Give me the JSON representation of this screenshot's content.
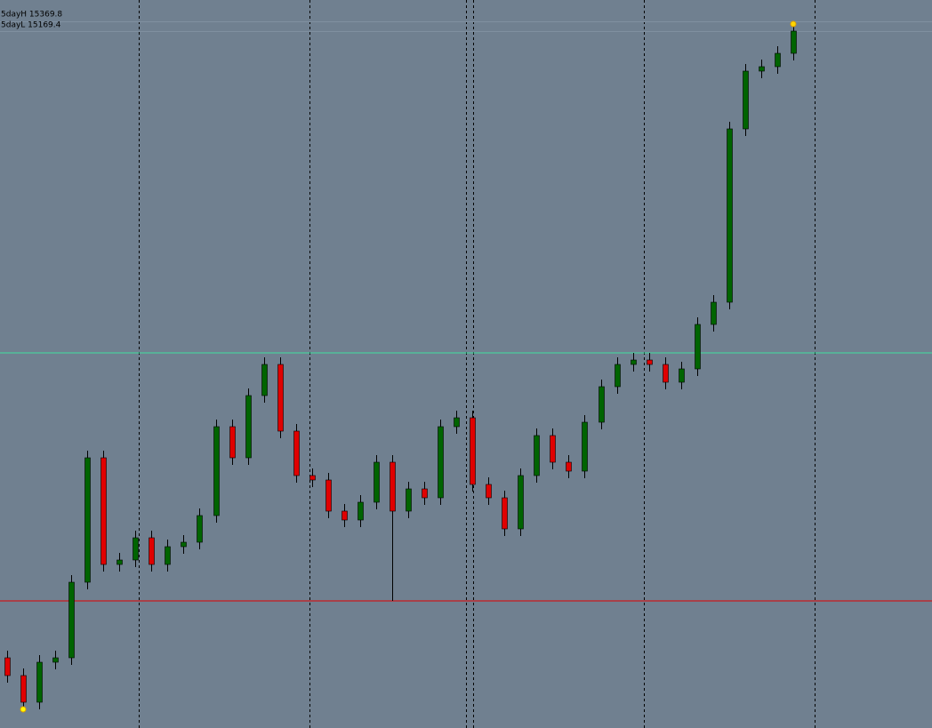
{
  "chart_data": {
    "type": "candlestick",
    "labels": [
      "5dayH 15369.8",
      "5dayL 15169.4"
    ],
    "open": [
      15039.5,
      15029.5,
      15014.5,
      15037,
      15039.5,
      15082,
      15152,
      15092,
      15094.5,
      15107,
      15092,
      15102,
      15104.5,
      15119.5,
      15169.5,
      15152,
      15187,
      15204.5,
      15167,
      15142,
      15139.5,
      15122,
      15117,
      15127,
      15149.5,
      15122,
      15134.5,
      15129.5,
      15169.5,
      15174.5,
      15137,
      15129.5,
      15112,
      15142,
      15164.5,
      15149.5,
      15144.5,
      15172,
      15192,
      15204.5,
      15207,
      15204.5,
      15194.5,
      15202,
      15227,
      15239.5,
      15337,
      15369.5,
      15372,
      15379.5
    ],
    "high": [
      15043.5,
      15033.5,
      15041,
      15043.5,
      15086,
      15156,
      15156,
      15098.5,
      15111,
      15111,
      15106,
      15108.5,
      15123.5,
      15173.5,
      15173.5,
      15191,
      15208.5,
      15208.5,
      15171,
      15146,
      15143.5,
      15126,
      15131,
      15153.5,
      15153.5,
      15138.5,
      15138.5,
      15173.5,
      15178.5,
      15178.5,
      15141,
      15133.5,
      15146,
      15168.5,
      15168.5,
      15153.5,
      15176,
      15196,
      15208.5,
      15211,
      15211,
      15208.5,
      15206,
      15231,
      15243.5,
      15341,
      15373.5,
      15376,
      15383.5,
      15396
    ],
    "low": [
      15025.5,
      15010.5,
      15010.5,
      15033,
      15035.5,
      15078,
      15088,
      15088,
      15090.5,
      15088,
      15088,
      15098,
      15100.5,
      15115.5,
      15148,
      15148,
      15183,
      15163,
      15138,
      15135.5,
      15118,
      15113,
      15113,
      15123,
      15071.5,
      15118,
      15125.5,
      15125.5,
      15165.5,
      15133,
      15125.5,
      15108,
      15108,
      15138,
      15145.5,
      15140.5,
      15140.5,
      15168,
      15188,
      15200.5,
      15200.5,
      15190.5,
      15190.5,
      15198,
      15223,
      15235.5,
      15333,
      15365.5,
      15368,
      15375.5
    ],
    "close": [
      15029.5,
      15014.5,
      15037,
      15039.5,
      15082,
      15152,
      15092,
      15094.5,
      15107,
      15092,
      15102,
      15104.5,
      15119.5,
      15169.5,
      15152,
      15187,
      15204.5,
      15167,
      15142,
      15139.5,
      15122,
      15117,
      15127,
      15149.5,
      15122,
      15134.5,
      15129.5,
      15169.5,
      15174.5,
      15137,
      15129.5,
      15112,
      15142,
      15164.5,
      15149.5,
      15144.5,
      15172,
      15192,
      15204.5,
      15207,
      15204.5,
      15194.5,
      15202,
      15227,
      15239.5,
      15337,
      15369.5,
      15372,
      15379.5,
      15392
    ],
    "up_color": "#006400",
    "down_color": "#e00000",
    "levels": [
      {
        "value": 15211,
        "color": "#40e0a0"
      },
      {
        "value": 15071.5,
        "color": "#e00000"
      }
    ],
    "ylim": [
      15000,
      15409.5
    ]
  }
}
